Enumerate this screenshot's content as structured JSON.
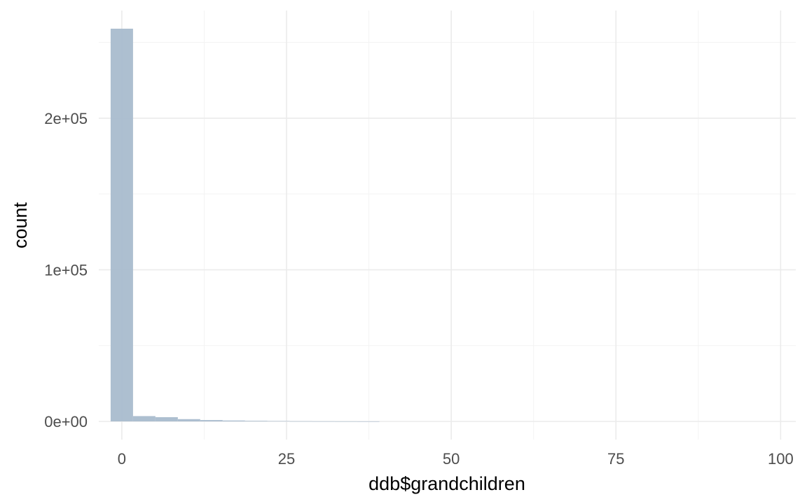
{
  "chart_data": {
    "type": "bar",
    "subtype": "histogram",
    "title": "",
    "xlabel": "ddb$grandchildren",
    "ylabel": "count",
    "xlim": [
      -3.5,
      102.3
    ],
    "ylim": [
      -12000,
      271000
    ],
    "x_major_ticks": [
      0,
      25,
      50,
      75,
      100
    ],
    "x_minor_ticks": [
      -12.5,
      12.5,
      37.5,
      62.5,
      87.5
    ],
    "y_major_ticks": [
      0,
      100000,
      200000
    ],
    "y_minor_ticks": [
      50000,
      150000,
      250000
    ],
    "x_tick_labels": [
      "0",
      "25",
      "50",
      "75",
      "100"
    ],
    "y_tick_labels": [
      "0e+00",
      "1e+05",
      "2e+05"
    ],
    "bin_width": 3.4,
    "bin_centers": [
      0,
      3.4,
      6.8,
      10.2,
      13.6,
      17.0,
      20.4,
      23.8,
      27.2,
      30.6,
      34.0,
      37.4
    ],
    "values": [
      259000,
      3500,
      2800,
      1500,
      900,
      600,
      400,
      250,
      150,
      80,
      50,
      30
    ],
    "bar_color": "#a9bccd",
    "grid": true,
    "legend": "none"
  }
}
